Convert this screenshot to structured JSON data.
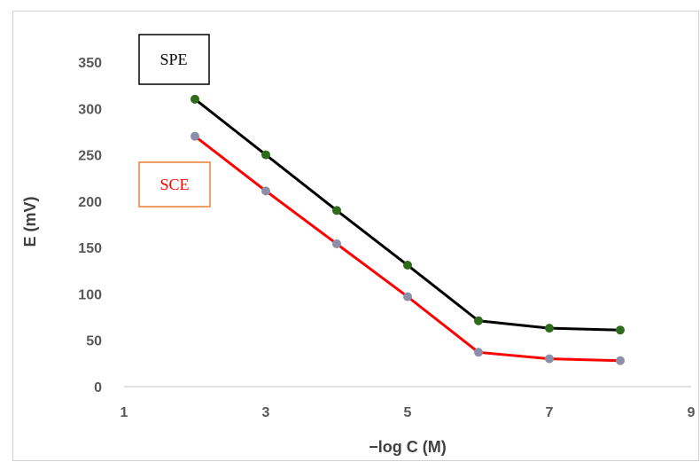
{
  "chart_data": {
    "type": "line",
    "xlabel": "−log C (M)",
    "ylabel": "E (mV)",
    "xlim": [
      1,
      9
    ],
    "ylim": [
      0,
      350
    ],
    "x_ticks": [
      "1",
      "3",
      "5",
      "7",
      "9"
    ],
    "y_ticks": [
      "0",
      "50",
      "100",
      "150",
      "200",
      "250",
      "300",
      "350"
    ],
    "grid": false,
    "series": [
      {
        "name": "SPE",
        "color": "#000000",
        "marker_color": "#2e6b1a",
        "x": [
          2,
          3,
          4,
          5,
          6,
          7,
          8
        ],
        "values": [
          310,
          250,
          190,
          131,
          71,
          63,
          61
        ]
      },
      {
        "name": "SCE",
        "color": "#ff0000",
        "marker_color": "#8c8fa8",
        "x": [
          2,
          3,
          4,
          5,
          6,
          7,
          8
        ],
        "values": [
          270,
          211,
          154,
          97,
          37,
          30,
          28
        ]
      }
    ]
  }
}
